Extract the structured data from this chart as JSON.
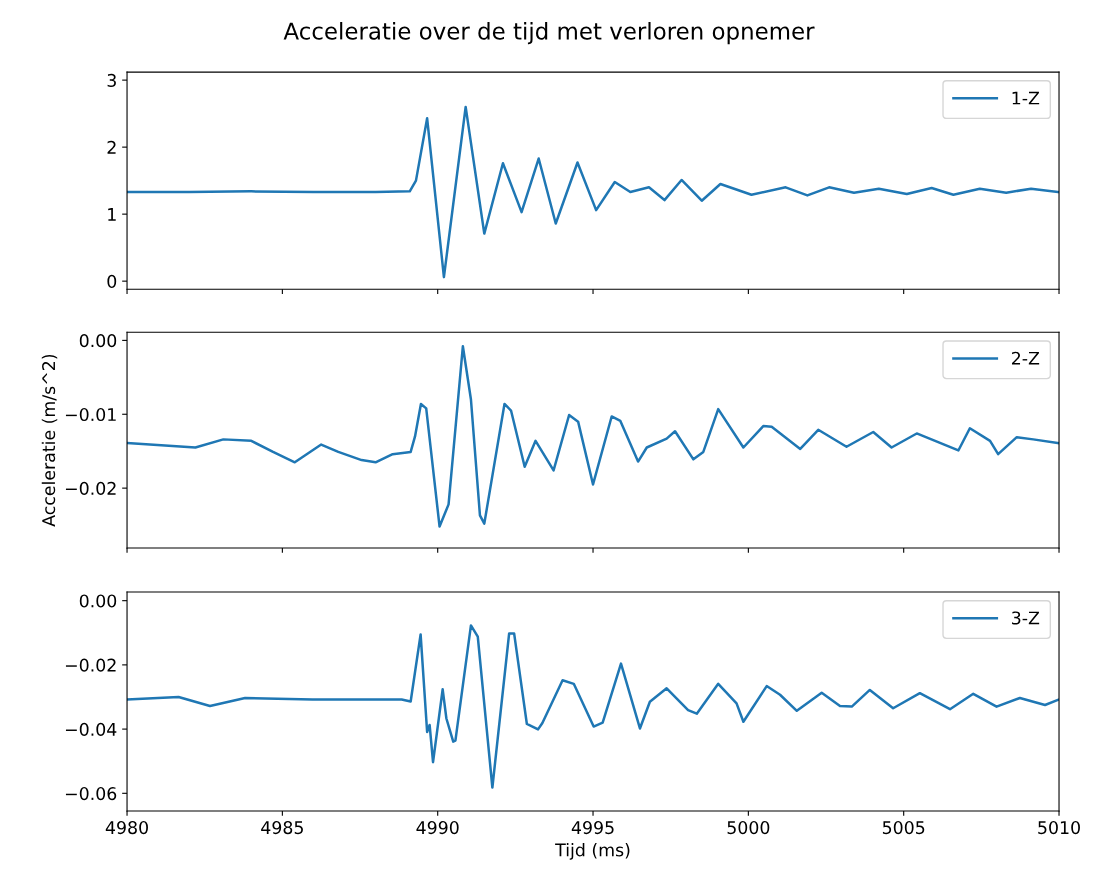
{
  "chart_data": [
    {
      "type": "line",
      "title": "Acceleratie over de tijd met verloren opnemer",
      "xlim": [
        4980,
        5010
      ],
      "xticks": [
        4980,
        4985,
        4990,
        4995,
        5000,
        5005,
        5010
      ],
      "ylim": [
        -0.12,
        3.12
      ],
      "yticks": [
        0,
        1,
        2,
        3
      ],
      "tick_labels": "y",
      "legend": "top right",
      "grid": false,
      "x": [
        4980,
        4982,
        4984,
        4986,
        4988,
        4989.1,
        4989.3,
        4989.66,
        4990.2,
        4990.9,
        4991.5,
        4992.1,
        4992.7,
        4993.25,
        4993.8,
        4994.5,
        4995.1,
        4995.7,
        4996.2,
        4996.8,
        4997.3,
        4997.85,
        4998.5,
        4999.1,
        5000.1,
        5001.2,
        5001.9,
        5002.6,
        5003.4,
        5004.2,
        5005.1,
        5005.9,
        5006.6,
        5007.45,
        5008.3,
        5009.1,
        5010
      ],
      "series": [
        {
          "name": "1-Z",
          "color": "#1f77b4",
          "values": [
            1.33,
            1.33,
            1.34,
            1.33,
            1.33,
            1.34,
            1.5,
            2.43,
            0.06,
            2.6,
            0.71,
            1.76,
            1.03,
            1.83,
            0.86,
            1.77,
            1.06,
            1.48,
            1.33,
            1.4,
            1.21,
            1.51,
            1.2,
            1.45,
            1.29,
            1.4,
            1.28,
            1.4,
            1.32,
            1.38,
            1.3,
            1.39,
            1.29,
            1.38,
            1.32,
            1.38,
            1.33
          ]
        }
      ]
    },
    {
      "type": "line",
      "ylabel": "Acceleratie (m/s^2)",
      "xlim": [
        4980,
        5010
      ],
      "xticks": [
        4980,
        4985,
        4990,
        4995,
        5000,
        5005,
        5010
      ],
      "ylim": [
        -0.0281,
        0.0011
      ],
      "yticks": [
        {
          "value": 0,
          "label": "0.00"
        },
        {
          "value": -0.01,
          "label": "−0.01"
        },
        {
          "value": -0.02,
          "label": "−0.02"
        }
      ],
      "tick_labels": "y",
      "legend": "top right",
      "grid": false,
      "x": [
        4980,
        4982.2,
        4983.1,
        4984.0,
        4984.7,
        4985.4,
        4986.25,
        4986.8,
        4987.55,
        4988.0,
        4988.55,
        4989.13,
        4989.27,
        4989.46,
        4989.63,
        4990.06,
        4990.35,
        4990.81,
        4991.07,
        4991.36,
        4991.5,
        4992.15,
        4992.36,
        4992.8,
        4993.15,
        4993.73,
        4994.23,
        4994.52,
        4995.0,
        4995.6,
        4995.88,
        4996.45,
        4996.73,
        4997.37,
        4997.64,
        4998.23,
        4998.55,
        4999.03,
        4999.84,
        5000.48,
        5000.75,
        5001.67,
        5002.25,
        5003.16,
        5004.02,
        5004.61,
        5005.42,
        5006.76,
        5007.13,
        5007.78,
        5008.04,
        5008.64,
        5009.17,
        5009.97
      ],
      "series": [
        {
          "name": "2-Z",
          "color": "#1f77b4",
          "values": [
            -0.0139,
            -0.0145,
            -0.0134,
            -0.0136,
            -0.0151,
            -0.0165,
            -0.0141,
            -0.0151,
            -0.0162,
            -0.0165,
            -0.0154,
            -0.0151,
            -0.013,
            -0.0086,
            -0.0092,
            -0.0252,
            -0.0222,
            -0.0008,
            -0.008,
            -0.0237,
            -0.0248,
            -0.0086,
            -0.0095,
            -0.0171,
            -0.0136,
            -0.0176,
            -0.0101,
            -0.011,
            -0.0195,
            -0.0103,
            -0.0109,
            -0.0164,
            -0.0145,
            -0.0133,
            -0.0123,
            -0.0161,
            -0.0151,
            -0.0093,
            -0.0145,
            -0.0116,
            -0.0117,
            -0.0147,
            -0.0121,
            -0.0144,
            -0.0124,
            -0.0145,
            -0.0126,
            -0.0149,
            -0.0119,
            -0.0136,
            -0.0154,
            -0.0131,
            -0.0134,
            -0.0139
          ]
        }
      ]
    },
    {
      "type": "line",
      "xlabel": "Tijd (ms)",
      "xlim": [
        4980,
        5010
      ],
      "xticks": [
        4980,
        4985,
        4990,
        4995,
        5000,
        5005,
        5010
      ],
      "ylim": [
        -0.0655,
        0.0027
      ],
      "yticks": [
        {
          "value": 0,
          "label": "0.00"
        },
        {
          "value": -0.02,
          "label": "−0.02"
        },
        {
          "value": -0.04,
          "label": "−0.04"
        },
        {
          "value": -0.06,
          "label": "−0.06"
        }
      ],
      "legend": "top right",
      "grid": false,
      "x": [
        4980,
        4981.66,
        4982.67,
        4983.8,
        4985.97,
        4988.84,
        4989.13,
        4989.45,
        4989.66,
        4989.74,
        4989.85,
        4990.16,
        4990.28,
        4990.5,
        4990.57,
        4991.07,
        4991.29,
        4991.76,
        4992.3,
        4992.46,
        4992.87,
        4993.23,
        4993.37,
        4994.02,
        4994.38,
        4995.02,
        4995.31,
        4995.9,
        4996.51,
        4996.83,
        4997.37,
        4998.06,
        4998.34,
        4999.03,
        4999.62,
        4999.84,
        5000.59,
        5001.02,
        5001.56,
        5002.36,
        5002.95,
        5003.33,
        5003.91,
        5004.66,
        5005.52,
        5006.49,
        5007.24,
        5007.99,
        5008.74,
        5009.55,
        5009.97
      ],
      "series": [
        {
          "name": "3-Z",
          "color": "#1f77b4",
          "values": [
            -0.0308,
            -0.03,
            -0.0328,
            -0.0303,
            -0.0308,
            -0.0308,
            -0.0314,
            -0.0105,
            -0.0409,
            -0.0387,
            -0.0503,
            -0.0276,
            -0.0367,
            -0.0439,
            -0.0436,
            -0.0077,
            -0.0112,
            -0.0582,
            -0.0102,
            -0.0102,
            -0.0384,
            -0.0401,
            -0.0381,
            -0.0248,
            -0.0259,
            -0.0392,
            -0.038,
            -0.0196,
            -0.0398,
            -0.0315,
            -0.0273,
            -0.0341,
            -0.0352,
            -0.0259,
            -0.032,
            -0.0377,
            -0.0266,
            -0.0293,
            -0.0343,
            -0.0287,
            -0.0328,
            -0.033,
            -0.0278,
            -0.0335,
            -0.0288,
            -0.0338,
            -0.029,
            -0.033,
            -0.0303,
            -0.0325,
            -0.0309
          ]
        }
      ]
    }
  ]
}
